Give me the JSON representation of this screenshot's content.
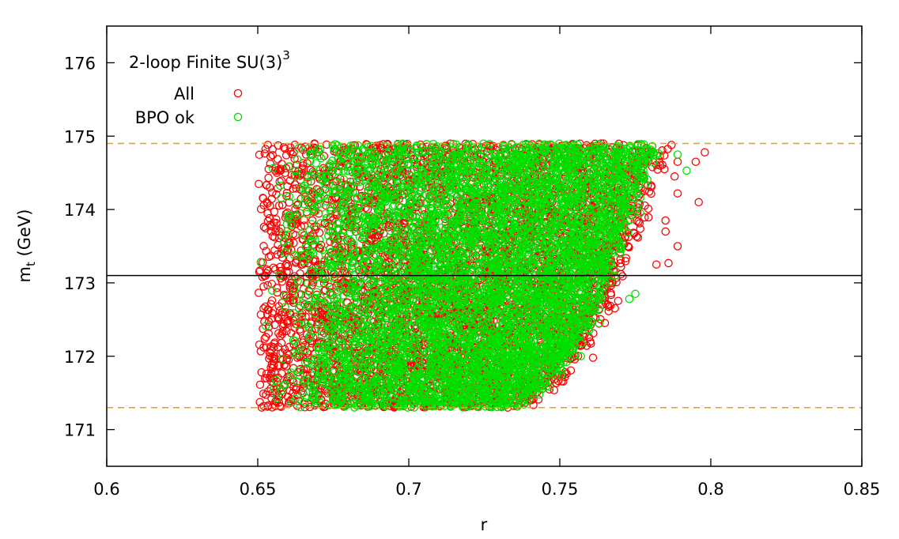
{
  "chart_data": {
    "type": "scatter",
    "title": "2-loop Finite SU(3)",
    "title_superscript": "3",
    "xlabel": "r",
    "ylabel_main": "m",
    "ylabel_sub": "t",
    "ylabel_unit": " (GeV)",
    "xlim": [
      0.6,
      0.85
    ],
    "ylim": [
      170.5,
      176.5
    ],
    "xticks": [
      0.6,
      0.65,
      0.7,
      0.75,
      0.8,
      0.85
    ],
    "xtick_labels": [
      "0.6",
      "0.65",
      "0.7",
      "0.75",
      "0.8",
      "0.85"
    ],
    "yticks": [
      171,
      172,
      173,
      174,
      175,
      176
    ],
    "ytick_labels": [
      "171",
      "172",
      "173",
      "174",
      "175",
      "176"
    ],
    "grid": false,
    "legend_position": "top-left",
    "reference_lines": [
      {
        "y": 173.1,
        "style": "solid",
        "color": "#000000"
      },
      {
        "y": 174.9,
        "style": "dashed",
        "color": "#f0a000"
      },
      {
        "y": 171.3,
        "style": "dashed",
        "color": "#f0a000"
      }
    ],
    "region": {
      "comment_free": true,
      "x_min": 0.65,
      "x_max_at_top": 0.785,
      "x_max_at_bottom": 0.735,
      "y_min": 171.3,
      "y_max": 174.9
    },
    "series": [
      {
        "name": "All",
        "color": "#ff0000",
        "marker": "open-circle",
        "outliers": [
          [
            0.798,
            174.78
          ],
          [
            0.795,
            174.65
          ],
          [
            0.789,
            174.65
          ],
          [
            0.788,
            174.45
          ],
          [
            0.796,
            174.1
          ],
          [
            0.789,
            174.22
          ],
          [
            0.785,
            173.7
          ],
          [
            0.789,
            173.5
          ],
          [
            0.786,
            173.27
          ],
          [
            0.787,
            174.88
          ],
          [
            0.761,
            171.98
          ],
          [
            0.653,
            174.1
          ],
          [
            0.654,
            174.3
          ],
          [
            0.659,
            174.5
          ],
          [
            0.785,
            173.85
          ],
          [
            0.782,
            173.25
          ]
        ]
      },
      {
        "name": "BPO ok",
        "color": "#00e000",
        "marker": "open-circle",
        "outliers": [
          [
            0.792,
            174.53
          ],
          [
            0.789,
            174.75
          ],
          [
            0.655,
            174.56
          ],
          [
            0.671,
            174.7
          ],
          [
            0.775,
            172.85
          ],
          [
            0.773,
            172.78
          ],
          [
            0.763,
            172.45
          ],
          [
            0.757,
            172.0
          ],
          [
            0.651,
            173.28
          ],
          [
            0.737,
            171.35
          ],
          [
            0.781,
            174.78
          ],
          [
            0.775,
            174.35
          ]
        ]
      }
    ]
  }
}
